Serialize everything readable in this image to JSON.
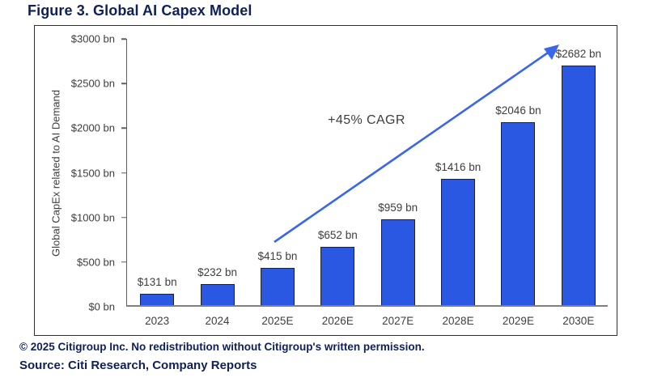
{
  "figure": {
    "title": "Figure 3. Global AI Capex Model",
    "footnote_line1": "© 2025 Citigroup Inc. No redistribution without Citigroup's written permission.",
    "footnote_line2": "Source: Citi Research, Company Reports"
  },
  "chart_data": {
    "type": "bar",
    "title": "Figure 3. Global AI Capex Model",
    "categories": [
      "2023",
      "2024",
      "2025E",
      "2026E",
      "2027E",
      "2028E",
      "2029E",
      "2030E"
    ],
    "values": [
      131,
      232,
      415,
      652,
      959,
      1416,
      2046,
      2682
    ],
    "bar_labels": [
      "$131 bn",
      "$232 bn",
      "$415 bn",
      "$652 bn",
      "$959 bn",
      "$1416 bn",
      "$2046 bn",
      "$2682 bn"
    ],
    "xlabel": "",
    "ylabel": "Global CapEx related to AI Demand",
    "ylim": [
      0,
      3000
    ],
    "ytick_step": 500,
    "ytick_labels": [
      "$0 bn",
      "$500 bn",
      "$1000 bn",
      "$1500 bn",
      "$2000 bn",
      "$2500 bn",
      "$3000 bn"
    ],
    "annotation": "+45% CAGR",
    "grid": false,
    "legend": false,
    "colors": {
      "bar_fill": "#2b58e3",
      "bar_border": "#222222",
      "arrow": "#3a66ed",
      "axis": "#5f5f5f",
      "text": "#3d3d3d",
      "title_navy": "#0f2058"
    }
  }
}
